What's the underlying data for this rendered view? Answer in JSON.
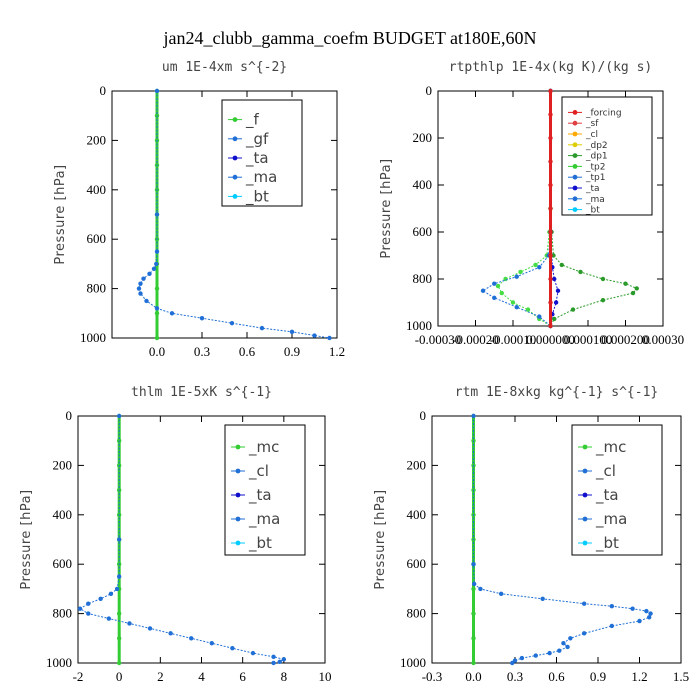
{
  "title": "jan24_clubb_gamma_coefm  BUDGET at180E,60N",
  "colors": {
    "green": "#33cc33",
    "blue": "#1f6fd6",
    "red": "#e02020",
    "darkgreen": "#2a9a2a"
  },
  "chart_data": [
    {
      "type": "line",
      "title": "um  1E-4xm s^{-2}",
      "ylabel": "Pressure [hPa]",
      "xlim": [
        -0.3,
        1.2
      ],
      "ylim": [
        1000,
        0
      ],
      "xticks": [
        0,
        0.3,
        0.6,
        0.9,
        1.2
      ],
      "xtick_labels": [
        "0.0",
        "0.3",
        "0.6",
        "0.9",
        "1.2"
      ],
      "yticks": [
        0,
        200,
        400,
        600,
        800,
        1000
      ],
      "ytick_labels": [
        "0",
        "200",
        "400",
        "600",
        "800",
        "1000"
      ],
      "legend": [
        "_f",
        "_gf",
        "_ta",
        "_ma",
        "_bt"
      ],
      "series": [
        {
          "name": "_f",
          "color": "#33cc33",
          "x": [
            0,
            0,
            0,
            0,
            0,
            0,
            0,
            0,
            0,
            0,
            0
          ],
          "y": [
            0,
            100,
            200,
            300,
            400,
            500,
            600,
            700,
            800,
            900,
            1000
          ]
        },
        {
          "name": "_gf",
          "color": "#1f6fd6",
          "x": [
            0,
            0,
            0,
            -0.005,
            -0.02,
            -0.05,
            -0.09,
            -0.11,
            -0.12,
            -0.11,
            -0.07,
            0.0,
            0.1,
            0.3,
            0.5,
            0.7,
            0.9,
            1.05,
            1.15
          ],
          "y": [
            0,
            500,
            650,
            700,
            720,
            740,
            760,
            780,
            800,
            820,
            850,
            880,
            900,
            920,
            940,
            960,
            975,
            990,
            1000
          ]
        }
      ]
    },
    {
      "type": "line",
      "title": "rtpthlp  1E-4x(kg K)/(kg s)",
      "ylabel": "Pressure [hPa]",
      "xlim": [
        -0.0003,
        0.0003
      ],
      "ylim": [
        1000,
        0
      ],
      "xticks": [
        -0.0003,
        -0.0002,
        -0.0001,
        0,
        0.0001,
        0.0002,
        0.0003
      ],
      "xtick_labels": [
        "-0.00030",
        "-0.00020",
        "-0.00010",
        "0.000000",
        "0.000100",
        "0.000200",
        "0.00030"
      ],
      "yticks": [
        0,
        200,
        400,
        600,
        800,
        1000
      ],
      "ytick_labels": [
        "0",
        "200",
        "400",
        "600",
        "800",
        "1000"
      ],
      "legend": [
        "_forcing",
        "_sf",
        "_cl",
        "_dp2",
        "_dp1",
        "_tp2",
        "_tp1",
        "_ta",
        "_ma",
        "_bt"
      ],
      "series": [
        {
          "name": "_dp1",
          "color": "#2a9a2a",
          "x": [
            0,
            0,
            3e-06,
            8e-06,
            3e-05,
            8e-05,
            0.00014,
            0.0002,
            0.00023,
            0.00022,
            0.00014,
            6e-05,
            1e-05,
            0
          ],
          "y": [
            0,
            500,
            600,
            700,
            740,
            770,
            800,
            820,
            840,
            860,
            890,
            930,
            970,
            1000
          ]
        },
        {
          "name": "_tp2",
          "color": "#44dd44",
          "x": [
            0,
            0,
            -3e-06,
            -1e-05,
            -4e-05,
            -8e-05,
            -0.00012,
            -0.00014,
            -0.00013,
            -0.0001,
            -6e-05,
            -3e-05,
            0
          ],
          "y": [
            0,
            500,
            600,
            700,
            740,
            770,
            800,
            830,
            860,
            900,
            930,
            970,
            1000
          ]
        },
        {
          "name": "_tp1",
          "color": "#1f6fd6",
          "x": [
            0,
            0,
            -5e-06,
            -3e-05,
            -9e-05,
            -0.00015,
            -0.00018,
            -0.00015,
            -9e-05,
            -3e-05,
            0
          ],
          "y": [
            0,
            600,
            700,
            750,
            790,
            820,
            850,
            880,
            920,
            960,
            1000
          ]
        },
        {
          "name": "_ta",
          "color": "#1010cc",
          "x": [
            0,
            0,
            5e-06,
            1e-05,
            2e-05,
            1.5e-05,
            5e-06,
            0
          ],
          "y": [
            0,
            600,
            750,
            800,
            850,
            900,
            950,
            1000
          ]
        },
        {
          "name": "_forcing",
          "color": "#e02020",
          "x": [
            0,
            0,
            0,
            0,
            0,
            0,
            0,
            0,
            0,
            0,
            0
          ],
          "y": [
            0,
            100,
            200,
            300,
            400,
            500,
            600,
            700,
            800,
            900,
            1000
          ]
        }
      ]
    },
    {
      "type": "line",
      "title": "thlm  1E-5xK s^{-1}",
      "ylabel": "Pressure [hPa]",
      "xlim": [
        -2,
        10
      ],
      "ylim": [
        1000,
        0
      ],
      "xticks": [
        -2,
        0,
        2,
        4,
        6,
        8,
        10
      ],
      "xtick_labels": [
        "-2",
        "0",
        "2",
        "4",
        "6",
        "8",
        "10"
      ],
      "yticks": [
        0,
        200,
        400,
        600,
        800,
        1000
      ],
      "ytick_labels": [
        "0",
        "200",
        "400",
        "600",
        "800",
        "1000"
      ],
      "legend": [
        "_mc",
        "_cl",
        "_ta",
        "_ma",
        "_bt"
      ],
      "series": [
        {
          "name": "_mc",
          "color": "#33cc33",
          "x": [
            0,
            0,
            0,
            0,
            0,
            0,
            0,
            0,
            0,
            0,
            0
          ],
          "y": [
            0,
            100,
            200,
            300,
            400,
            500,
            600,
            700,
            800,
            900,
            1000
          ]
        },
        {
          "name": "_cl",
          "color": "#1f6fd6",
          "x": [
            0,
            0,
            0,
            -0.1,
            -0.4,
            -0.9,
            -1.5,
            -1.9,
            -1.5,
            -0.5,
            0.5,
            1.5,
            2.5,
            3.5,
            4.5,
            5.5,
            6.5,
            7.5,
            8,
            7.8,
            7.5
          ],
          "y": [
            0,
            500,
            650,
            700,
            720,
            740,
            760,
            780,
            800,
            820,
            840,
            860,
            880,
            900,
            920,
            940,
            960,
            975,
            985,
            995,
            1000
          ]
        }
      ]
    },
    {
      "type": "line",
      "title": "rtm  1E-8xkg kg^{-1} s^{-1}",
      "ylabel": "Pressure [hPa]",
      "xlim": [
        -0.3,
        1.5
      ],
      "ylim": [
        1000,
        0
      ],
      "xticks": [
        -0.3,
        0,
        0.3,
        0.6,
        0.9,
        1.2,
        1.5
      ],
      "xtick_labels": [
        "-0.3",
        "0.0",
        "0.3",
        "0.6",
        "0.9",
        "1.2",
        "1.5"
      ],
      "yticks": [
        0,
        200,
        400,
        600,
        800,
        1000
      ],
      "ytick_labels": [
        "0",
        "200",
        "400",
        "600",
        "800",
        "1000"
      ],
      "legend": [
        "_mc",
        "_cl",
        "_ta",
        "_ma",
        "_bt"
      ],
      "series": [
        {
          "name": "_mc",
          "color": "#33cc33",
          "x": [
            0,
            0,
            0,
            0,
            0,
            0,
            0,
            0,
            0,
            0,
            0
          ],
          "y": [
            0,
            100,
            200,
            300,
            400,
            500,
            600,
            700,
            800,
            900,
            1000
          ]
        },
        {
          "name": "_cl",
          "color": "#1f6fd6",
          "x": [
            0,
            0,
            0.005,
            0.05,
            0.2,
            0.5,
            0.8,
            1.0,
            1.15,
            1.25,
            1.28,
            1.27,
            1.2,
            1.0,
            0.8,
            0.7,
            0.65,
            0.68,
            0.62,
            0.55,
            0.45,
            0.35,
            0.3,
            0.28
          ],
          "y": [
            0,
            600,
            680,
            700,
            720,
            740,
            760,
            770,
            780,
            790,
            800,
            815,
            830,
            850,
            880,
            900,
            920,
            935,
            950,
            960,
            970,
            980,
            990,
            1000
          ]
        }
      ]
    }
  ]
}
